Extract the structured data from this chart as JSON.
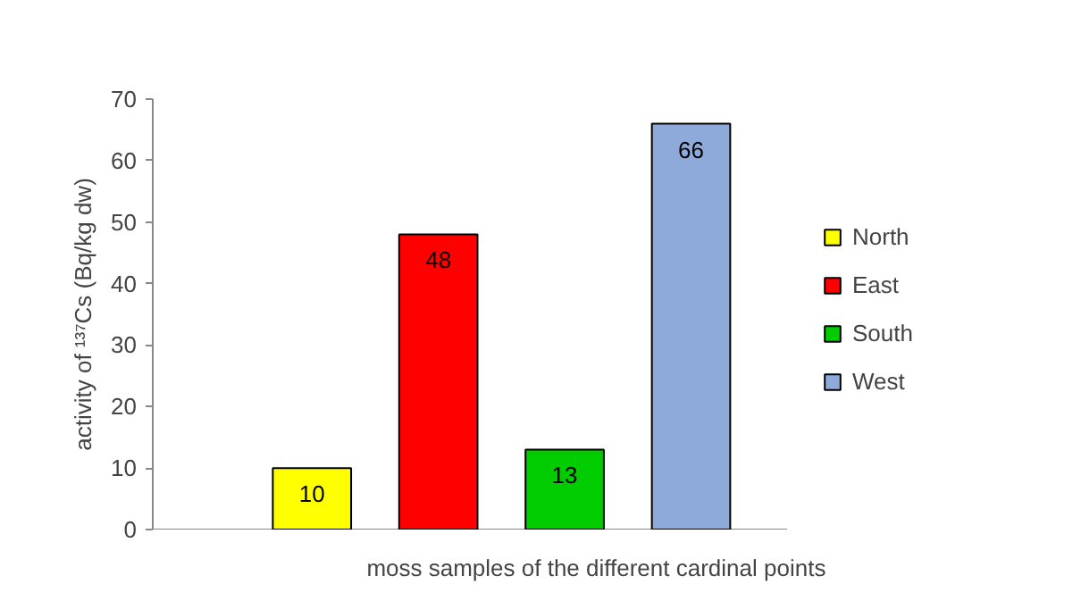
{
  "chart_data": {
    "type": "bar",
    "xlabel": "moss samples of  the different cardinal points",
    "ylabel": "activity of ¹³⁷Cs (Bq/kg dw)",
    "categories": [
      null
    ],
    "series": [
      {
        "name": "North",
        "color": "#ffff00",
        "values": [
          10
        ]
      },
      {
        "name": "East",
        "color": "#ff0000",
        "values": [
          48
        ]
      },
      {
        "name": "South",
        "color": "#00cc00",
        "values": [
          13
        ]
      },
      {
        "name": "West",
        "color": "#8eaadb",
        "values": [
          66
        ]
      }
    ],
    "ylim": [
      0,
      70
    ],
    "yticks": [
      0,
      10,
      20,
      30,
      40,
      50,
      60,
      70
    ],
    "data_labels": true,
    "legend": "right",
    "grid": false,
    "tick_labels": "y"
  }
}
